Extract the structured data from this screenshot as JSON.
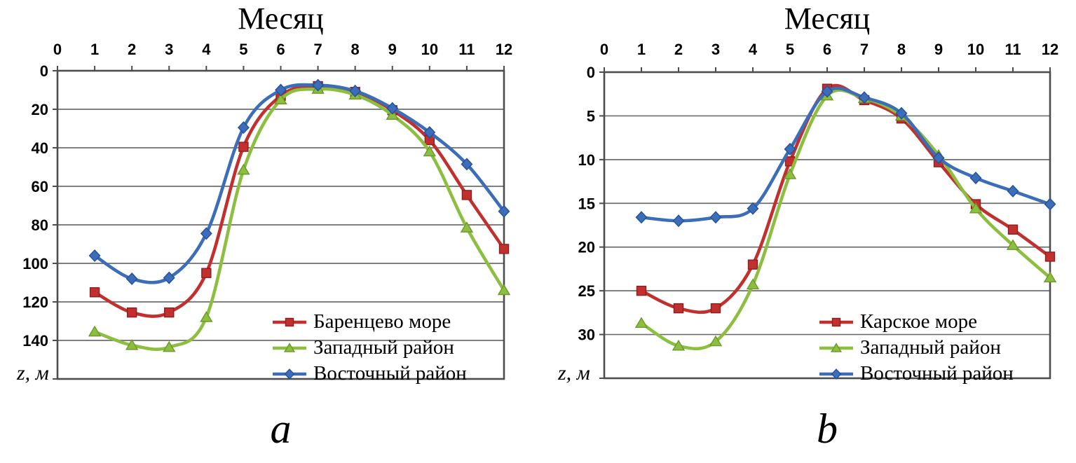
{
  "styles": {
    "grid_color": "#6e6e6e",
    "axis_color": "#4d4d4d",
    "text_color": "#000000",
    "background": "#ffffff"
  },
  "chart_data": [
    {
      "type": "line",
      "panel": "a",
      "caption": "a",
      "title": "Месяц",
      "xlabel": "Месяц",
      "ylabel": "z, м",
      "grid": true,
      "legend_position": "inside-bottom-right",
      "x_axis": {
        "position": "top",
        "min": 0,
        "max": 12,
        "ticks": [
          0,
          1,
          2,
          3,
          4,
          5,
          6,
          7,
          8,
          9,
          10,
          11,
          12
        ]
      },
      "y_axis": {
        "inverted": true,
        "min": 0,
        "max": 160,
        "tick_step": 20,
        "labeled_ticks": [
          0,
          20,
          40,
          60,
          80,
          100,
          120,
          140
        ],
        "unit": "м"
      },
      "months": [
        1,
        2,
        3,
        4,
        5,
        6,
        7,
        8,
        9,
        10,
        11,
        12
      ],
      "series": [
        {
          "label": "Баренцево море",
          "marker": "square",
          "color": "#c12f2e",
          "edge_color": "#8e1f1f",
          "values": [
            115,
            125.5,
            125.5,
            105,
            39.5,
            13,
            8,
            11,
            20.5,
            36,
            64.5,
            92.5
          ]
        },
        {
          "label": "Западный район",
          "marker": "triangle",
          "color": "#8cbe3f",
          "edge_color": "#6d9a2b",
          "values": [
            135.5,
            142.5,
            143.5,
            128,
            51.5,
            15,
            9.5,
            12.5,
            23,
            42,
            81.5,
            114
          ]
        },
        {
          "label": "Восточный район",
          "marker": "diamond",
          "color": "#3b6db9",
          "edge_color": "#27509b",
          "values": [
            96,
            108,
            107.5,
            84.5,
            29.5,
            10,
            7.5,
            10.5,
            19.5,
            32,
            48.5,
            73
          ]
        }
      ]
    },
    {
      "type": "line",
      "panel": "b",
      "caption": "b",
      "title": "Месяц",
      "xlabel": "Месяц",
      "ylabel": "z, м",
      "grid": true,
      "legend_position": "inside-bottom-right",
      "x_axis": {
        "position": "top",
        "min": 0,
        "max": 12,
        "ticks": [
          0,
          1,
          2,
          3,
          4,
          5,
          6,
          7,
          8,
          9,
          10,
          11,
          12
        ]
      },
      "y_axis": {
        "inverted": true,
        "min": 0,
        "max": 35,
        "tick_step": 5,
        "labeled_ticks": [
          0,
          5,
          10,
          15,
          20,
          25,
          30
        ],
        "unit": "м"
      },
      "months": [
        1,
        2,
        3,
        4,
        5,
        6,
        7,
        8,
        9,
        10,
        11,
        12
      ],
      "series": [
        {
          "label": "Карское море",
          "marker": "square",
          "color": "#c12f2e",
          "edge_color": "#8e1f1f",
          "values": [
            25,
            27,
            27,
            22,
            10.2,
            1.9,
            3.2,
            5.3,
            10.3,
            15.1,
            18,
            21.1
          ]
        },
        {
          "label": "Западный район",
          "marker": "triangle",
          "color": "#8cbe3f",
          "edge_color": "#6d9a2b",
          "values": [
            28.7,
            31.3,
            30.8,
            24.3,
            11.7,
            2.7,
            3.0,
            5.0,
            9.5,
            15.6,
            19.8,
            23.5
          ]
        },
        {
          "label": "Восточный район",
          "marker": "diamond",
          "color": "#3b6db9",
          "edge_color": "#27509b",
          "values": [
            16.6,
            17,
            16.6,
            15.6,
            8.8,
            2.2,
            2.9,
            4.7,
            9.8,
            12.1,
            13.6,
            15.1
          ]
        }
      ]
    }
  ]
}
